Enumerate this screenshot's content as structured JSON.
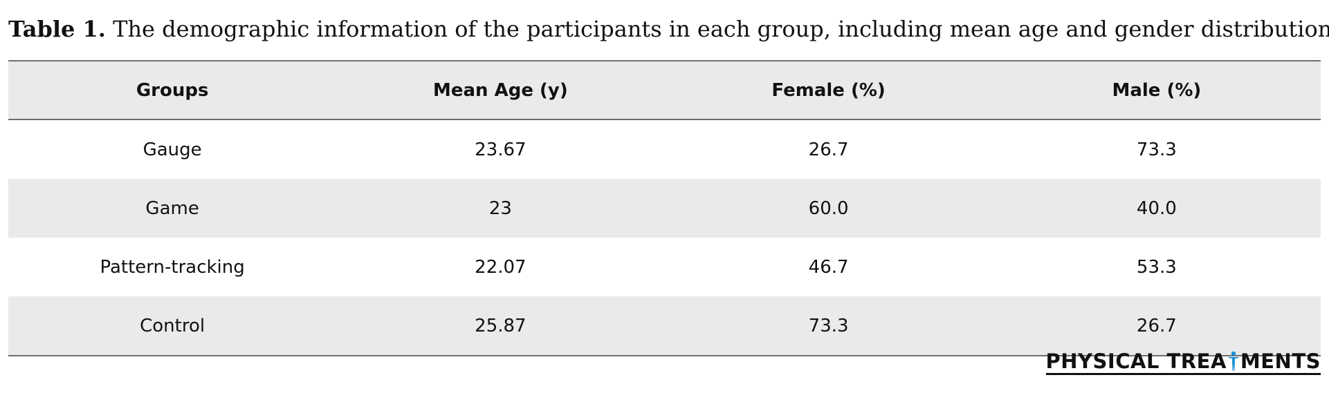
{
  "caption": {
    "label": "Table 1.",
    "text": "The demographic information of the participants in each group, including mean age and gender distribution"
  },
  "table": {
    "headers": [
      "Groups",
      "Mean Age (y)",
      "Female (%)",
      "Male (%)"
    ],
    "rows": [
      [
        "Gauge",
        "23.67",
        "26.7",
        "73.3"
      ],
      [
        "Game",
        "23",
        "60.0",
        "40.0"
      ],
      [
        "Pattern-tracking",
        "22.07",
        "46.7",
        "53.3"
      ],
      [
        "Control",
        "25.87",
        "73.3",
        "26.7"
      ]
    ]
  },
  "logo": {
    "text_before": "PHYSICAL TREA",
    "text_after": "MENTS",
    "icon": "human-figure-icon",
    "figure_color": "#1a8fd0"
  }
}
